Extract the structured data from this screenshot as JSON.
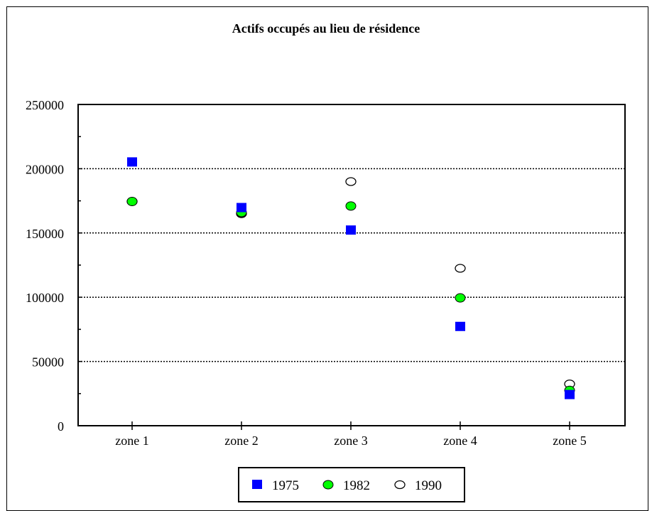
{
  "chart_data": {
    "type": "scatter",
    "title": "Actifs occupés au lieu de résidence",
    "xlabel": "",
    "ylabel": "",
    "categories": [
      "zone 1",
      "zone 2",
      "zone 3",
      "zone 4",
      "zone 5"
    ],
    "ylim": [
      0,
      250000
    ],
    "yticks": [
      0,
      50000,
      100000,
      150000,
      200000,
      250000
    ],
    "ytick_labels": [
      "0",
      "50000",
      "100000",
      "150000",
      "200000",
      "250000"
    ],
    "grid": "horizontal-dotted",
    "legend_position": "bottom-center",
    "series": [
      {
        "name": "1975",
        "marker": "square",
        "color": "#0000ff",
        "values": [
          205000,
          169500,
          152000,
          77000,
          24000
        ]
      },
      {
        "name": "1982",
        "marker": "filled-circle",
        "color": "#00ff00",
        "values": [
          174500,
          166000,
          171000,
          99500,
          27500
        ]
      },
      {
        "name": "1990",
        "marker": "open-circle",
        "color": "#ffffff",
        "values": [
          174500,
          165000,
          190000,
          122500,
          32500
        ]
      }
    ]
  }
}
